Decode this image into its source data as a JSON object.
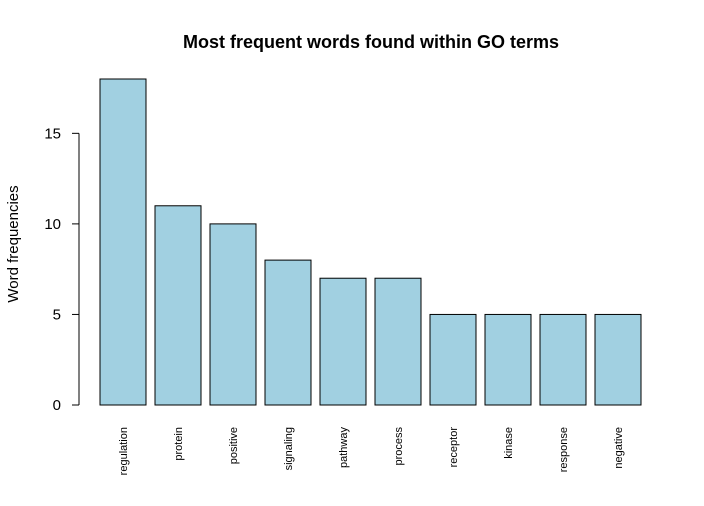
{
  "chart_data": {
    "type": "bar",
    "title": "Most frequent words found within GO terms",
    "xlabel": "",
    "ylabel": "Word frequencies",
    "categories": [
      "regulation",
      "protein",
      "positive",
      "signaling",
      "pathway",
      "process",
      "receptor",
      "kinase",
      "response",
      "negative"
    ],
    "values": [
      18,
      11,
      10,
      8,
      7,
      7,
      5,
      5,
      5,
      5
    ],
    "ylim": [
      0,
      18
    ],
    "yticks": [
      0,
      5,
      10,
      15
    ],
    "bar_color": "#A1D0E1",
    "grid": false,
    "legend": "none"
  }
}
